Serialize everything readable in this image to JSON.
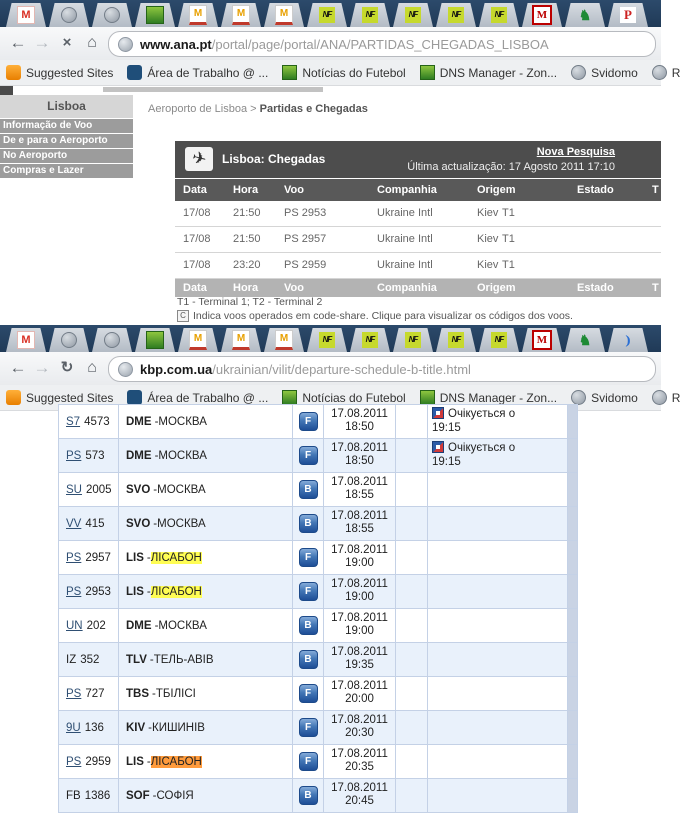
{
  "browser_top": {
    "tabs": [
      "gmail",
      "globe",
      "globe",
      "grass",
      "pma",
      "pma",
      "pma",
      "nf",
      "nf",
      "nf",
      "nf",
      "nf",
      "mred",
      "lion",
      "p"
    ],
    "nav": {
      "back": "←",
      "forward": "→",
      "stop_reload": "×",
      "home": "⌂"
    },
    "url": {
      "host": "www.ana.pt",
      "path": "/portal/page/portal/ANA/PARTIDAS_CHEGADAS_LISBOA"
    },
    "bookmarks": [
      {
        "icon": "bulb",
        "label": "Suggested Sites"
      },
      {
        "icon": "gear",
        "label": "Área de Trabalho @ ..."
      },
      {
        "icon": "grass",
        "label": "Notícias do Futebol"
      },
      {
        "icon": "grass",
        "label": "DNS Manager - Zon..."
      },
      {
        "icon": "globe",
        "label": "Svidomo"
      },
      {
        "icon": "globe",
        "label": "R"
      }
    ]
  },
  "browser_bottom": {
    "tabs": [
      "gmail",
      "globe",
      "globe",
      "grass",
      "pma",
      "pma",
      "pma",
      "nf",
      "nf",
      "nf",
      "nf",
      "nf",
      "mred",
      "lion",
      "moon"
    ],
    "nav": {
      "back": "←",
      "forward": "→",
      "stop_reload": "↻",
      "home": "⌂"
    },
    "url": {
      "host": "kbp.com.ua",
      "path": "/ukrainian/vilit/departure-schedule-b-title.html"
    },
    "bookmarks": [
      {
        "icon": "bulb",
        "label": "Suggested Sites"
      },
      {
        "icon": "gear",
        "label": "Área de Trabalho @ ..."
      },
      {
        "icon": "grass",
        "label": "Notícias do Futebol"
      },
      {
        "icon": "grass",
        "label": "DNS Manager - Zon..."
      },
      {
        "icon": "globe",
        "label": "Svidomo"
      },
      {
        "icon": "globe",
        "label": "R"
      }
    ]
  },
  "ana_page": {
    "sidebar": {
      "title": "Lisboa",
      "items": [
        "Informação de Voo",
        "De e para o Aeroporto",
        "No Aeroporto",
        "Compras e Lazer"
      ]
    },
    "breadcrumb": {
      "prefix": "Aeroporto de Lisboa > ",
      "current": "Partidas e Chegadas"
    },
    "panel": {
      "icon": "✈",
      "title": "Lisboa: Chegadas",
      "new_search": "Nova Pesquisa",
      "updated": "Última actualização: 17 Agosto 2011 17:10"
    },
    "columns": [
      "Data",
      "Hora",
      "Voo",
      "Companhia",
      "Origem",
      "Estado",
      "T"
    ],
    "rows": [
      {
        "data": "17/08",
        "hora": "21:50",
        "voo": "PS 2953",
        "companhia": "Ukraine Intl",
        "origem": "Kiev",
        "terminal": "T1"
      },
      {
        "data": "17/08",
        "hora": "21:50",
        "voo": "PS 2957",
        "companhia": "Ukraine Intl",
        "origem": "Kiev",
        "terminal": "T1"
      },
      {
        "data": "17/08",
        "hora": "23:20",
        "voo": "PS 2959",
        "companhia": "Ukraine Intl",
        "origem": "Kiev",
        "terminal": "T1"
      }
    ],
    "note_terminals": "T1 - Terminal 1; T2 - Terminal 2",
    "codeshare_icon": "C",
    "note_codeshare": "Indica voos operados em code-share. Clique para visualizar os códigos dos voos."
  },
  "kbp_page": {
    "rows": [
      {
        "carrier": "S7",
        "number": "4573",
        "link": true,
        "code": "DME",
        "city": "МОСКВА",
        "highlight": "none",
        "terminal": "F",
        "date": "17.08.2011",
        "time": "18:50",
        "status_lines": [
          "Очікується о",
          "19:15"
        ],
        "status_icon": true
      },
      {
        "carrier": "PS",
        "number": "573",
        "link": true,
        "code": "DME",
        "city": "МОСКВА",
        "highlight": "none",
        "terminal": "F",
        "date": "17.08.2011",
        "time": "18:50",
        "status_lines": [
          "Очікується о",
          "19:15"
        ],
        "status_icon": true
      },
      {
        "carrier": "SU",
        "number": "2005",
        "link": true,
        "code": "SVO",
        "city": "МОСКВА",
        "highlight": "none",
        "terminal": "B",
        "date": "17.08.2011",
        "time": "18:55",
        "status_lines": [],
        "status_icon": false
      },
      {
        "carrier": "VV",
        "number": "415",
        "link": true,
        "code": "SVO",
        "city": "МОСКВА",
        "highlight": "none",
        "terminal": "B",
        "date": "17.08.2011",
        "time": "18:55",
        "status_lines": [],
        "status_icon": false
      },
      {
        "carrier": "PS",
        "number": "2957",
        "link": true,
        "code": "LIS",
        "city": "ЛІСАБОН",
        "highlight": "yellow",
        "terminal": "F",
        "date": "17.08.2011",
        "time": "19:00",
        "status_lines": [],
        "status_icon": false
      },
      {
        "carrier": "PS",
        "number": "2953",
        "link": true,
        "code": "LIS",
        "city": "ЛІСАБОН",
        "highlight": "yellow",
        "terminal": "F",
        "date": "17.08.2011",
        "time": "19:00",
        "status_lines": [],
        "status_icon": false
      },
      {
        "carrier": "UN",
        "number": "202",
        "link": true,
        "code": "DME",
        "city": "МОСКВА",
        "highlight": "none",
        "terminal": "B",
        "date": "17.08.2011",
        "time": "19:00",
        "status_lines": [],
        "status_icon": false
      },
      {
        "carrier": "IZ",
        "number": "352",
        "link": false,
        "code": "TLV",
        "city": "ТЕЛЬ-АВІВ",
        "highlight": "none",
        "terminal": "B",
        "date": "17.08.2011",
        "time": "19:35",
        "status_lines": [],
        "status_icon": false
      },
      {
        "carrier": "PS",
        "number": "727",
        "link": true,
        "code": "TBS",
        "city": "ТБІЛІСІ",
        "highlight": "none",
        "terminal": "F",
        "date": "17.08.2011",
        "time": "20:00",
        "status_lines": [],
        "status_icon": false
      },
      {
        "carrier": "9U",
        "number": "136",
        "link": true,
        "code": "KIV",
        "city": "КИШИНІВ",
        "highlight": "none",
        "terminal": "F",
        "date": "17.08.2011",
        "time": "20:30",
        "status_lines": [],
        "status_icon": false
      },
      {
        "carrier": "PS",
        "number": "2959",
        "link": true,
        "code": "LIS",
        "city": "ЛІСАБОН",
        "highlight": "orange",
        "terminal": "F",
        "date": "17.08.2011",
        "time": "20:35",
        "status_lines": [],
        "status_icon": false
      },
      {
        "carrier": "FB",
        "number": "1386",
        "link": false,
        "code": "SOF",
        "city": "СОФІЯ",
        "highlight": "none",
        "terminal": "B",
        "date": "17.08.2011",
        "time": "20:45",
        "status_lines": [],
        "status_icon": false
      }
    ]
  }
}
